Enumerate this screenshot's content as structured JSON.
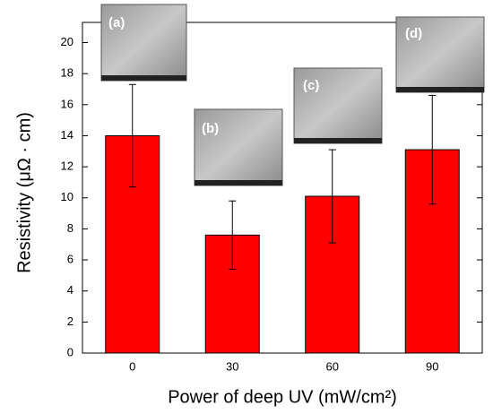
{
  "chart_data": {
    "type": "bar",
    "y_label": "Resistivity (μΩ · cm)",
    "x_label": "Power of deep UV  (mW/cm²)",
    "categories": [
      "0",
      "30",
      "60",
      "90"
    ],
    "values": [
      14.0,
      7.6,
      10.1,
      13.1
    ],
    "errors": [
      3.3,
      2.2,
      3.0,
      3.5
    ],
    "color": "#ff0000",
    "ylim": [
      0,
      21.3
    ],
    "yticks": [
      0,
      2,
      4,
      6,
      8,
      10,
      12,
      14,
      16,
      18,
      20
    ],
    "inset_labels": [
      "(a)",
      "(b)",
      "(c)",
      "(d)"
    ]
  }
}
